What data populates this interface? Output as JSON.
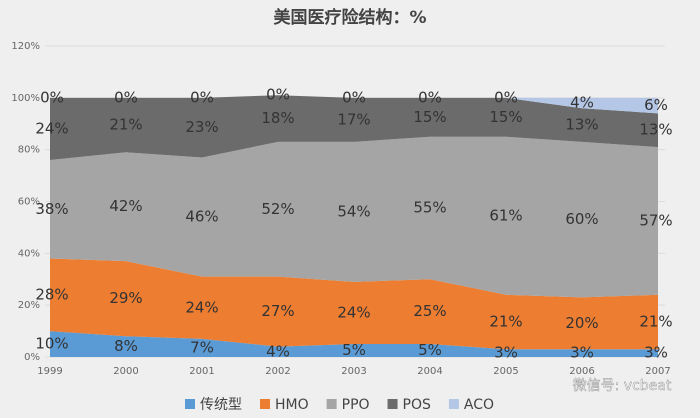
{
  "chart_data": {
    "type": "stacked_area",
    "title": "美国医疗险结构：%",
    "categories": [
      "1999",
      "2000",
      "2001",
      "2002",
      "2003",
      "2004",
      "2005",
      "2006",
      "2007"
    ],
    "series": [
      {
        "name": "传统型",
        "color": "#5b9bd5",
        "values": [
          10,
          8,
          7,
          4,
          5,
          5,
          3,
          3,
          3
        ],
        "value_labels": [
          "10%",
          "8%",
          "7%",
          "4%",
          "5%",
          "5%",
          "3%",
          "3%",
          "3%"
        ]
      },
      {
        "name": "HMO",
        "color": "#ed7d31",
        "values": [
          28,
          29,
          24,
          27,
          24,
          25,
          21,
          20,
          21
        ],
        "value_labels": [
          "28%",
          "29%",
          "24%",
          "27%",
          "24%",
          "25%",
          "21%",
          "20%",
          "21%"
        ]
      },
      {
        "name": "PPO",
        "color": "#a5a5a5",
        "values": [
          38,
          42,
          46,
          52,
          54,
          55,
          61,
          60,
          57
        ],
        "value_labels": [
          "38%",
          "42%",
          "46%",
          "52%",
          "54%",
          "55%",
          "61%",
          "60%",
          "57%"
        ]
      },
      {
        "name": "POS",
        "color": "#6b6b6b",
        "values": [
          24,
          21,
          23,
          18,
          17,
          15,
          15,
          13,
          13
        ],
        "value_labels": [
          "24%",
          "21%",
          "23%",
          "18%",
          "17%",
          "15%",
          "15%",
          "13%",
          "13%"
        ]
      },
      {
        "name": "ACO",
        "color": "#b4c7e7",
        "values": [
          0,
          0,
          0,
          0,
          0,
          0,
          0,
          4,
          6
        ],
        "value_labels": [
          "0%",
          "0%",
          "0%",
          "0%",
          "0%",
          "0%",
          "0%",
          "4%",
          "6%"
        ]
      }
    ],
    "ylim": [
      0,
      120
    ],
    "yticks": [
      {
        "value": 0,
        "label": "0%"
      },
      {
        "value": 20,
        "label": "20%"
      },
      {
        "value": 40,
        "label": "40%"
      },
      {
        "value": 60,
        "label": "60%"
      },
      {
        "value": 80,
        "label": "80%"
      },
      {
        "value": 100,
        "label": "100%"
      },
      {
        "value": 120,
        "label": "120%"
      }
    ],
    "grid": true,
    "legend": "bottom",
    "watermark": "微信号: vcbeat"
  }
}
